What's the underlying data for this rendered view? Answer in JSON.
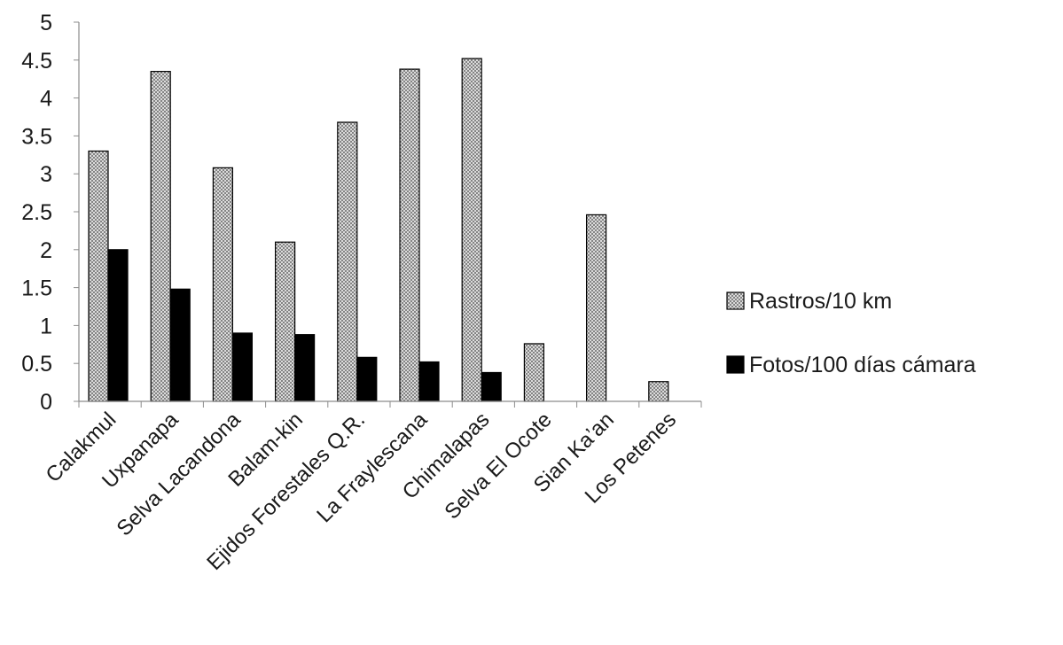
{
  "chart_data": {
    "type": "bar",
    "title": "",
    "xlabel": "",
    "ylabel": "",
    "ylim": [
      0,
      5
    ],
    "yticks": [
      "0",
      "0.5",
      "1",
      "1.5",
      "2",
      "2.5",
      "3",
      "3.5",
      "4",
      "4.5",
      "5"
    ],
    "grid": false,
    "legend_position": "right",
    "categories": [
      "Calakmul",
      "Uxpanapa",
      "Selva Lacandona",
      "Balam-kin",
      "Ejidos Forestales Q.R.",
      "La Fraylescana",
      "Chimalapas",
      "Selva El Ocote",
      "Sian Ka’an",
      "Los Petenes"
    ],
    "series": [
      {
        "name": "Rastros/10 km",
        "style": "crosshatch",
        "color": "#d9d9d9",
        "values": [
          3.3,
          4.35,
          3.08,
          2.1,
          3.68,
          4.38,
          4.52,
          0.76,
          2.46,
          0.26
        ]
      },
      {
        "name": "Fotos/100 días cámara",
        "style": "solid",
        "color": "#000000",
        "values": [
          2.0,
          1.48,
          0.9,
          0.88,
          0.58,
          0.52,
          0.38,
          0,
          0,
          0
        ]
      }
    ]
  }
}
